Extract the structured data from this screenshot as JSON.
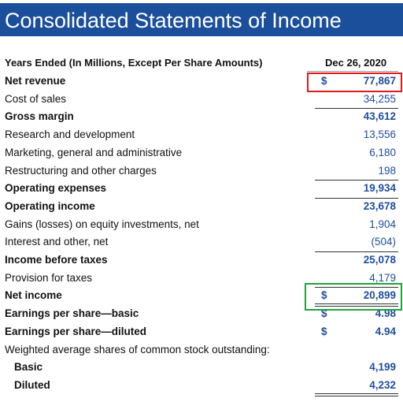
{
  "header": {
    "title": "Consolidated Statements of Income"
  },
  "table": {
    "column_label": "Years Ended (In Millions, Except Per Share Amounts)",
    "period": "Dec 26, 2020",
    "rows": [
      {
        "label": "Net revenue",
        "currency": "$",
        "value": "77,867"
      },
      {
        "label": "Cost of sales",
        "value": "34,255"
      },
      {
        "label": "Gross margin",
        "value": "43,612"
      },
      {
        "label": "Research and development",
        "value": "13,556"
      },
      {
        "label": "Marketing, general and administrative",
        "value": "6,180"
      },
      {
        "label": "Restructuring and other charges",
        "value": "198"
      },
      {
        "label": "Operating expenses",
        "value": "19,934"
      },
      {
        "label": "Operating income",
        "value": "23,678"
      },
      {
        "label": "Gains (losses) on equity investments, net",
        "value": "1,904"
      },
      {
        "label": "Interest and other, net",
        "value": "(504)"
      },
      {
        "label": "Income before taxes",
        "value": "25,078"
      },
      {
        "label": "Provision for taxes",
        "value": "4,179"
      },
      {
        "label": "Net income",
        "currency": "$",
        "value": "20,899"
      },
      {
        "label": "Earnings per share—basic",
        "currency": "$",
        "value": "4.98"
      },
      {
        "label": "Earnings per share—diluted",
        "currency": "$",
        "value": "4.94"
      },
      {
        "label": "Weighted average shares of common stock outstanding:"
      },
      {
        "label": "Basic",
        "value": "4,199"
      },
      {
        "label": "Diluted",
        "value": "4,232"
      }
    ]
  }
}
